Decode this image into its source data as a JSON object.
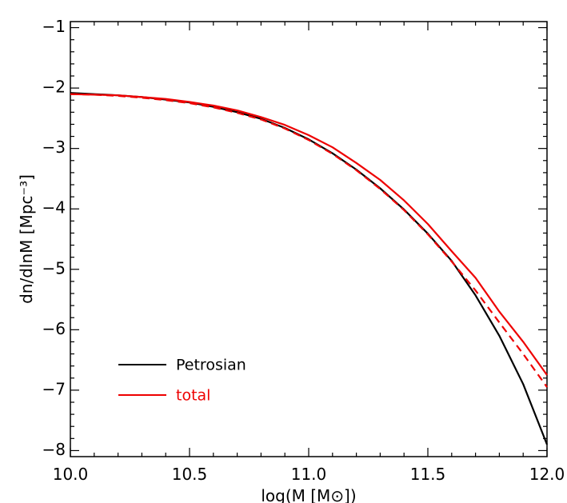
{
  "chart_data": {
    "type": "line",
    "xlabel": "log(M [M⊙])",
    "ylabel": "dn/dlnM [Mpc⁻³]",
    "xlim": [
      10.0,
      12.0
    ],
    "ylim": [
      -8.1,
      -0.9
    ],
    "x_ticks": [
      10.0,
      10.5,
      11.0,
      11.5,
      12.0
    ],
    "x_tick_labels": [
      "10.0",
      "10.5",
      "11.0",
      "11.5",
      "12.0"
    ],
    "y_ticks": [
      -1,
      -2,
      -3,
      -4,
      -5,
      -6,
      -7,
      -8
    ],
    "y_tick_labels": [
      "−1",
      "−2",
      "−3",
      "−4",
      "−5",
      "−6",
      "−7",
      "−8"
    ],
    "x_minor_step": 0.1,
    "y_minor_step": 0.2,
    "grid": false,
    "legend_position": "bottom-left",
    "series": [
      {
        "name": "Petrosian",
        "color": "#000000",
        "style": "solid",
        "x": [
          10.0,
          10.1,
          10.2,
          10.3,
          10.4,
          10.5,
          10.6,
          10.7,
          10.8,
          10.9,
          11.0,
          11.1,
          11.2,
          11.3,
          11.4,
          11.5,
          11.6,
          11.7,
          11.8,
          11.9,
          12.0
        ],
        "y": [
          -2.08,
          -2.1,
          -2.12,
          -2.15,
          -2.19,
          -2.24,
          -2.31,
          -2.4,
          -2.51,
          -2.66,
          -2.85,
          -3.08,
          -3.35,
          -3.66,
          -4.01,
          -4.41,
          -4.86,
          -5.43,
          -6.1,
          -6.9,
          -7.9
        ]
      },
      {
        "name": "",
        "color": "#ee0000",
        "style": "dashed",
        "x": [
          10.0,
          10.1,
          10.2,
          10.3,
          10.4,
          10.5,
          10.6,
          10.7,
          10.8,
          10.9,
          11.0,
          11.1,
          11.2,
          11.3,
          11.4,
          11.5,
          11.6,
          11.7,
          11.8,
          11.9,
          12.0
        ],
        "y": [
          -2.1,
          -2.11,
          -2.13,
          -2.16,
          -2.2,
          -2.25,
          -2.32,
          -2.41,
          -2.52,
          -2.67,
          -2.86,
          -3.09,
          -3.36,
          -3.67,
          -4.02,
          -4.42,
          -4.87,
          -5.35,
          -5.88,
          -6.4,
          -6.95
        ]
      },
      {
        "name": "total",
        "color": "#ee0000",
        "style": "solid",
        "x": [
          10.0,
          10.1,
          10.2,
          10.3,
          10.4,
          10.5,
          10.6,
          10.7,
          10.8,
          10.9,
          11.0,
          11.1,
          11.2,
          11.3,
          11.4,
          11.5,
          11.6,
          11.7,
          11.8,
          11.9,
          12.0
        ],
        "y": [
          -2.1,
          -2.11,
          -2.12,
          -2.15,
          -2.18,
          -2.23,
          -2.29,
          -2.37,
          -2.48,
          -2.61,
          -2.78,
          -2.98,
          -3.24,
          -3.52,
          -3.86,
          -4.25,
          -4.7,
          -5.14,
          -5.7,
          -6.2,
          -6.75
        ]
      }
    ],
    "legend": [
      {
        "label": "Petrosian",
        "color": "#000000"
      },
      {
        "label": "total",
        "color": "#ee0000"
      }
    ]
  }
}
